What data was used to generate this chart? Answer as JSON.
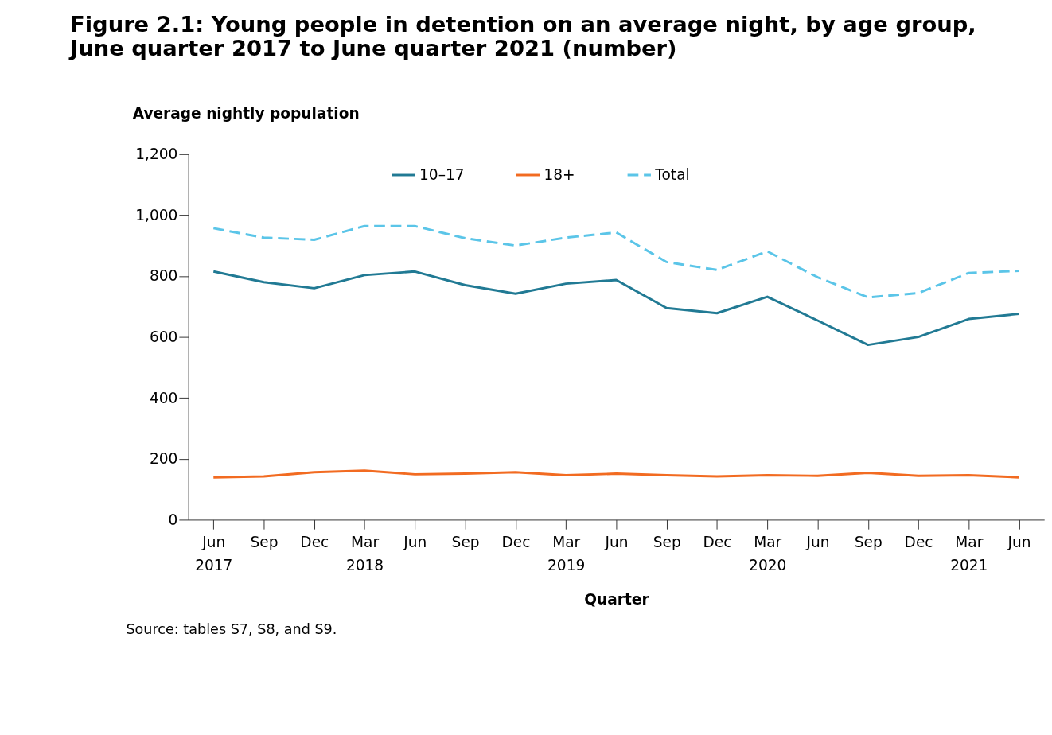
{
  "chart_data": {
    "type": "line",
    "title": "Figure 2.1: Young people in detention on an average night, by age group, June quarter 2017 to June quarter 2021 (number)",
    "xlabel": "Quarter",
    "ylabel": "Average nightly population",
    "categories": [
      "Jun\n2017",
      "Sep",
      "Dec",
      "Mar\n2018",
      "Jun",
      "Sep",
      "Dec",
      "Mar\n2019",
      "Jun",
      "Sep",
      "Dec",
      "Mar\n2020",
      "Jun",
      "Sep",
      "Dec",
      "Mar\n2021",
      "Jun"
    ],
    "series": [
      {
        "name": "10–17",
        "color": "#217a94",
        "line_style": "solid",
        "values": [
          815,
          780,
          760,
          803,
          815,
          770,
          742,
          775,
          787,
          695,
          678,
          732,
          654,
          574,
          600,
          659,
          676
        ]
      },
      {
        "name": "18+",
        "color": "#f26b21",
        "line_style": "solid",
        "values": [
          139,
          142,
          156,
          161,
          149,
          151,
          156,
          146,
          151,
          146,
          142,
          146,
          144,
          154,
          144,
          146,
          139
        ]
      },
      {
        "name": "Total",
        "color": "#5bc5e8",
        "line_style": "dashed",
        "values": [
          957,
          926,
          919,
          964,
          964,
          924,
          900,
          926,
          943,
          846,
          820,
          881,
          796,
          730,
          744,
          810,
          817
        ]
      }
    ],
    "ylim": [
      0,
      1200
    ],
    "yticks": [
      0,
      200,
      400,
      600,
      800,
      {
        "value": 1000,
        "label": "1,000"
      },
      {
        "value": 1200,
        "label": "1,200"
      }
    ],
    "legend": "top",
    "grid": false,
    "annotations": [
      "Source: tables S7, S8, and S9."
    ]
  }
}
